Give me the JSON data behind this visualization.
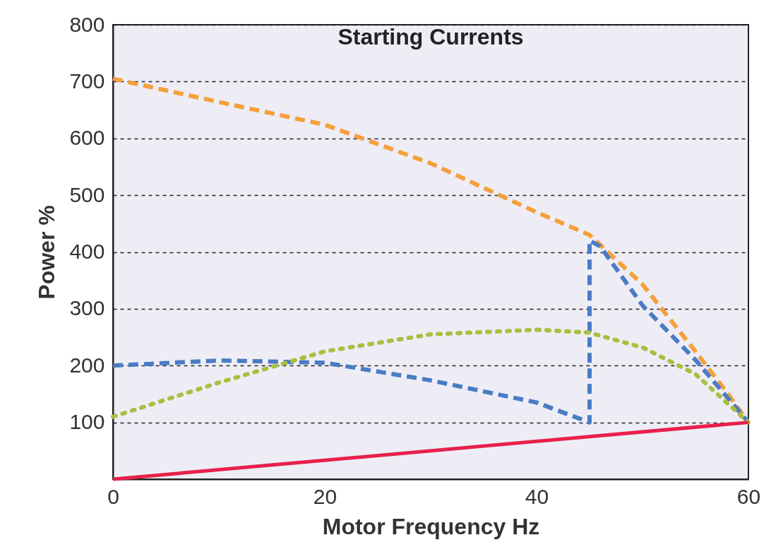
{
  "chart_data": {
    "type": "line",
    "title": "Starting Currents",
    "xlabel": "Motor Frequency Hz",
    "ylabel": "Power %",
    "xlim": [
      0,
      60
    ],
    "ylim": [
      0,
      800
    ],
    "xticks": [
      0,
      20,
      40,
      60
    ],
    "yticks": [
      100,
      200,
      300,
      400,
      500,
      600,
      700,
      800
    ],
    "grid": "y",
    "marker": "none",
    "series": [
      {
        "color": "#f5a03c",
        "line_style": "dashed",
        "x": [
          0,
          10,
          20,
          30,
          40,
          45,
          50,
          55,
          58,
          60
        ],
        "values": [
          705,
          664,
          624,
          556,
          470,
          430,
          343,
          225,
          152,
          100
        ]
      },
      {
        "color": "#4a7cc4",
        "line_style": "dashed",
        "x": [
          0,
          10,
          20,
          30,
          40,
          45,
          45,
          46,
          50,
          55,
          60
        ],
        "values": [
          200,
          209,
          205,
          174,
          135,
          100,
          420,
          410,
          306,
          210,
          100
        ]
      },
      {
        "color": "#a8c040",
        "line_style": "dotted",
        "x": [
          0,
          10,
          20,
          30,
          40,
          45,
          50,
          55,
          60
        ],
        "values": [
          110,
          170,
          225,
          255,
          263,
          258,
          232,
          185,
          100
        ]
      },
      {
        "color": "#e8204a",
        "line_style": "solid",
        "x": [
          0,
          60
        ],
        "values": [
          0,
          100
        ]
      }
    ]
  }
}
